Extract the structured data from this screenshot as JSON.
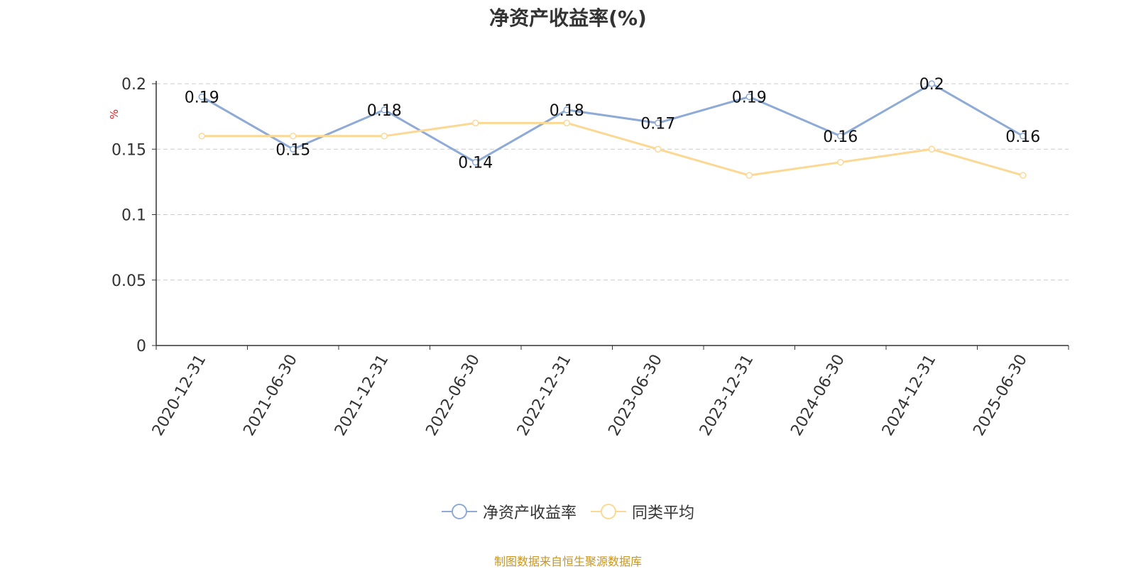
{
  "chart_data": {
    "type": "line",
    "title": "净资产收益率(%)",
    "ylabel": "%",
    "categories": [
      "2020-12-31",
      "2021-06-30",
      "2021-12-31",
      "2022-06-30",
      "2022-12-31",
      "2023-06-30",
      "2023-12-31",
      "2024-06-30",
      "2024-12-31",
      "2025-06-30"
    ],
    "series": [
      {
        "name": "净资产收益率",
        "color": "#8eaad6",
        "values": [
          0.19,
          0.15,
          0.18,
          0.14,
          0.18,
          0.17,
          0.19,
          0.16,
          0.2,
          0.16
        ],
        "labels": [
          "0.19",
          "0.15",
          "0.18",
          "0.14",
          "0.18",
          "0.17",
          "0.19",
          "0.16",
          "0.2",
          "0.16"
        ]
      },
      {
        "name": "同类平均",
        "color": "#fbd894",
        "values": [
          0.16,
          0.16,
          0.16,
          0.17,
          0.17,
          0.15,
          0.13,
          0.14,
          0.15,
          0.13
        ]
      }
    ],
    "yticks": [
      "0",
      "0.05",
      "0.1",
      "0.15",
      "0.2"
    ],
    "ylim": [
      0,
      0.2
    ],
    "grid": true,
    "legend_position": "bottom"
  },
  "footer": {
    "source": "制图数据来自恒生聚源数据库"
  }
}
